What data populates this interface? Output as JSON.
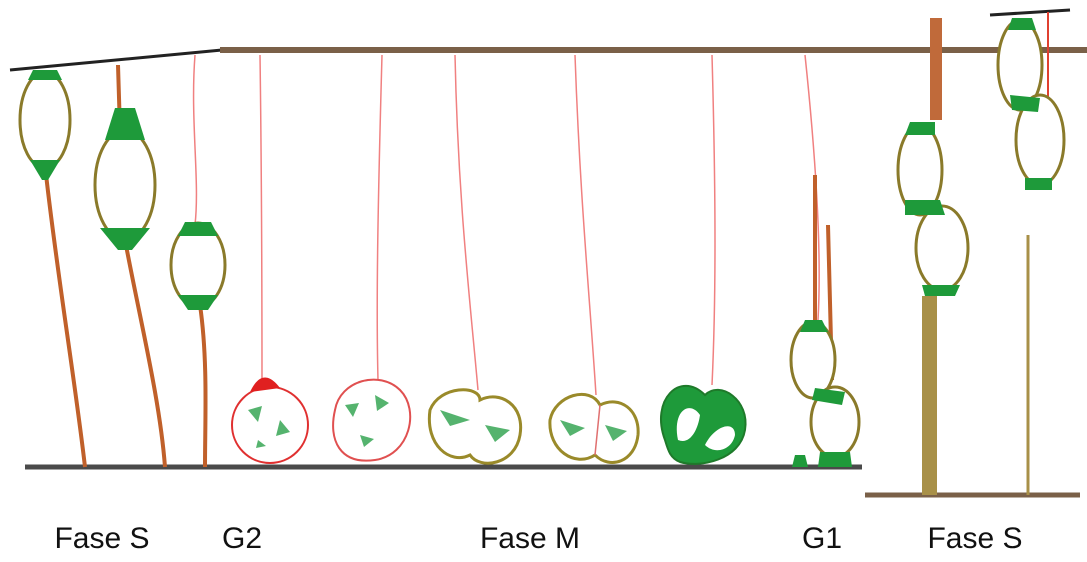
{
  "labels": [
    "Fase S",
    "G2",
    "Fase M",
    "G1",
    "Fase S"
  ]
}
